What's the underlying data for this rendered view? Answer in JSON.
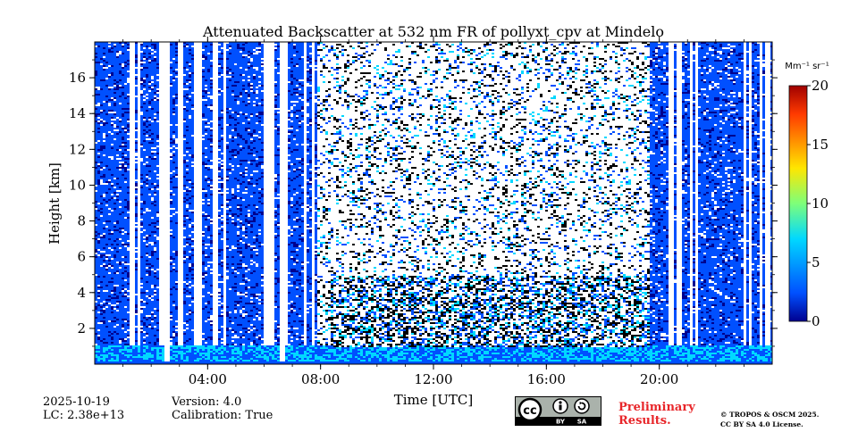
{
  "chart_data": {
    "type": "heatmap",
    "title": "Attenuated Backscatter at 532 nm FR of pollyxt_cpv at Mindelo",
    "xlabel": "Time [UTC]",
    "ylabel": "Height [km]",
    "xlim": [
      0,
      24
    ],
    "ylim": [
      0,
      18
    ],
    "x_ticks": [
      "04:00",
      "08:00",
      "12:00",
      "16:00",
      "20:00"
    ],
    "x_tick_values": [
      4,
      8,
      12,
      16,
      20
    ],
    "y_ticks": [
      "2",
      "4",
      "6",
      "8",
      "10",
      "12",
      "14",
      "16"
    ],
    "y_tick_values": [
      2,
      4,
      6,
      8,
      10,
      12,
      14,
      16
    ],
    "colorbar": {
      "label": "Mm⁻¹ sr⁻¹",
      "min": 0,
      "max": 20,
      "ticks": [
        "0",
        "5",
        "10",
        "15",
        "20"
      ],
      "tick_values": [
        0,
        5,
        10,
        15,
        20
      ],
      "colormap": "jet",
      "colors": [
        "#00008f",
        "#0050ff",
        "#00d8ff",
        "#7dff7a",
        "#ffe600",
        "#ff6a00",
        "#a00000"
      ]
    },
    "features": {
      "boundary_layer_top_km": 1.0,
      "surface_layer_km": 0.2,
      "gap_times_utc": [
        2.5,
        6.6
      ],
      "daytime_noise_span_utc": [
        7.8,
        19.6
      ],
      "elevated_layer_time_utc": [
        8.3,
        19.5
      ],
      "elevated_layer_top_km": 5.0
    }
  },
  "footer": {
    "date": "2025-10-19",
    "lc": "LC: 2.38e+13",
    "version": "Version: 4.0",
    "calibration": "Calibration: True",
    "preliminary_line1": "Preliminary",
    "preliminary_line2": "Results.",
    "copyright_line1": "© TROPOS & OSCM 2025.",
    "copyright_line2": "CC BY SA 4.0 License.",
    "license_badge_text": "cc",
    "license_by": "BY",
    "license_sa": "SA"
  }
}
